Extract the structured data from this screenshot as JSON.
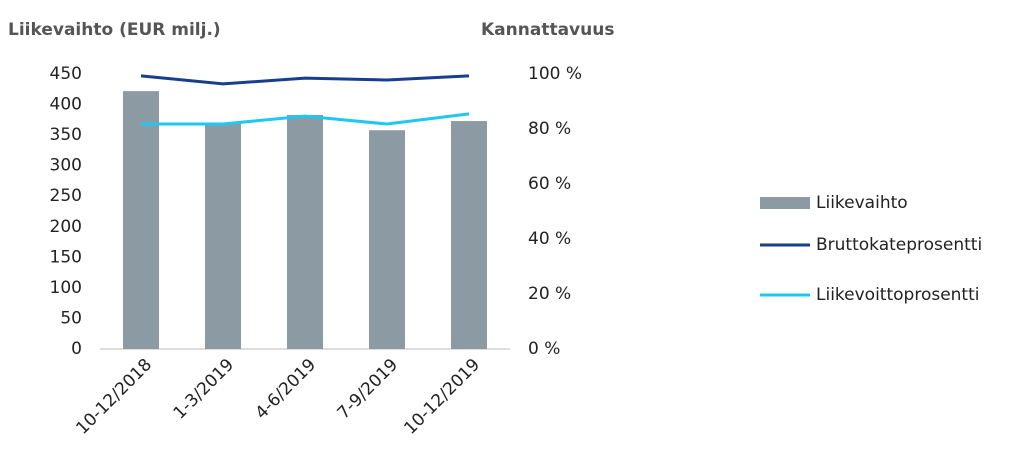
{
  "chart_data": {
    "type": "combo",
    "title": "Liikevaihto (EUR milj.)",
    "y2_title": "Kannattavuus",
    "categories": [
      "10-12/2018",
      "1-3/2019",
      "4-6/2019",
      "7-9/2019",
      "10-12/2019"
    ],
    "series": [
      {
        "name": "Liikevaihto",
        "type": "bar",
        "color": "#8c9ba3",
        "values": [
          422,
          370,
          383,
          358,
          373
        ]
      },
      {
        "name": "Bruttokateprosentti",
        "type": "line",
        "axis": "y2",
        "color": "#183e8f",
        "values": [
          99.3,
          96.4,
          98.5,
          97.8,
          99.3
        ]
      },
      {
        "name": "Liikevoittoprosentti",
        "type": "line",
        "axis": "y2",
        "color": "#1ec8f0",
        "values": [
          81.8,
          81.8,
          84.7,
          81.8,
          85.5
        ]
      }
    ],
    "ylim": [
      0,
      450
    ],
    "yticks": [
      0,
      50,
      100,
      150,
      200,
      250,
      300,
      350,
      400,
      450
    ],
    "y2lim": [
      0,
      100
    ],
    "y2ticks": [
      {
        "value": 0,
        "label": "0 %"
      },
      {
        "value": 20,
        "label": "20 %"
      },
      {
        "value": 40,
        "label": "40 %"
      },
      {
        "value": 60,
        "label": "60 %"
      },
      {
        "value": 80,
        "label": "80 %"
      },
      {
        "value": 100,
        "label": "100 %"
      }
    ],
    "grid": false,
    "legend": "right"
  }
}
